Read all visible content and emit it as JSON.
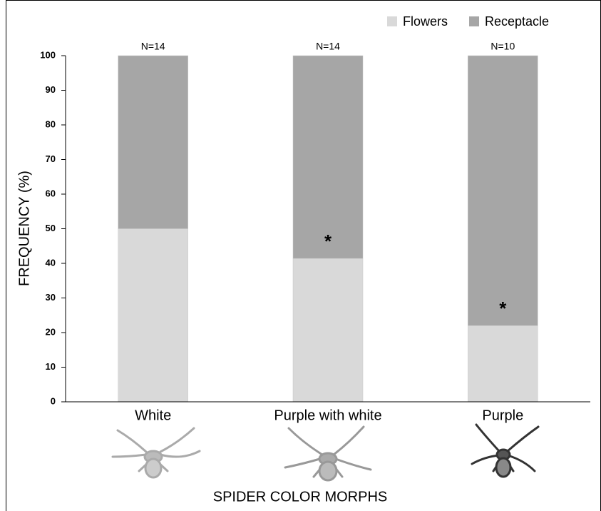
{
  "chart_data": {
    "type": "stacked_bar",
    "xlabel": "SPIDER COLOR MORPHS",
    "ylabel": "FREQUENCY (%)",
    "categories": [
      "White",
      "Purple with white",
      "Purple"
    ],
    "series": [
      {
        "name": "Flowers",
        "color": "#d9d9d9",
        "values": [
          50,
          41.4,
          22
        ]
      },
      {
        "name": "Receptacle",
        "color": "#a6a6a6",
        "values": [
          50,
          58.6,
          78
        ]
      }
    ],
    "n_labels": [
      "N=14",
      "N=14",
      "N=10"
    ],
    "significance": [
      null,
      "*",
      "*"
    ],
    "ylim": [
      0,
      100
    ],
    "yticks": [
      0,
      10,
      20,
      30,
      40,
      50,
      60,
      70,
      80,
      90,
      100
    ],
    "legend": "top-right"
  }
}
